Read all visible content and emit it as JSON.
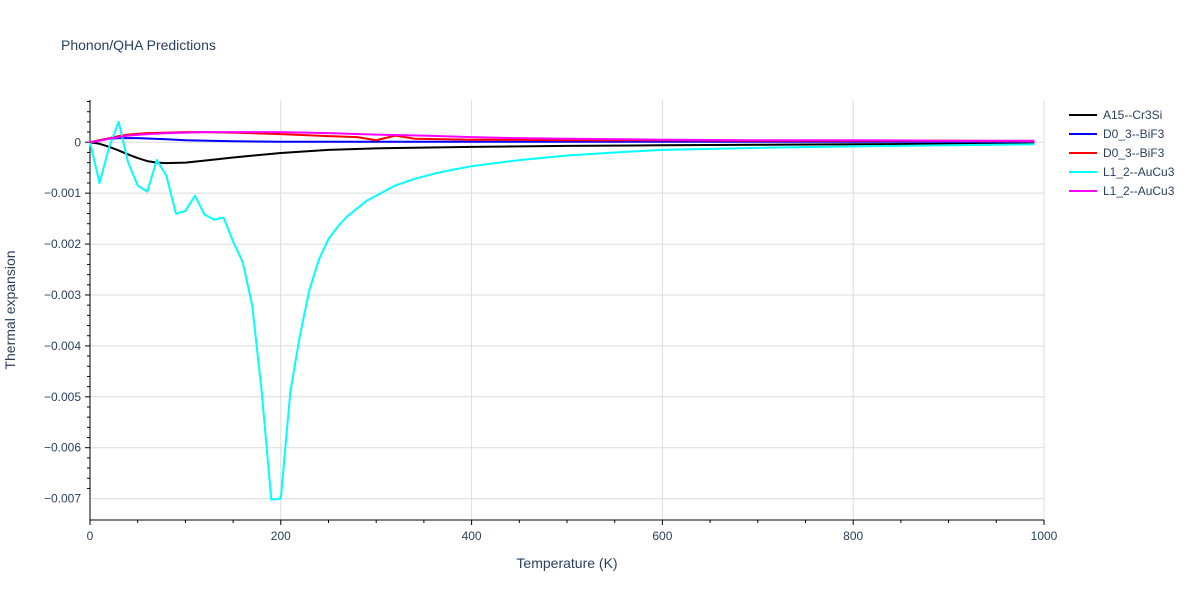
{
  "chart_data": {
    "type": "line",
    "title": "Phonon/QHA Predictions",
    "xlabel": "Temperature (K)",
    "ylabel": "Thermal expansion",
    "xlim": [
      0,
      1000
    ],
    "ylim": [
      -0.00742,
      0.00083
    ],
    "xticks": [
      0,
      200,
      400,
      600,
      800,
      1000
    ],
    "xtick_labels": [
      "0",
      "200",
      "400",
      "600",
      "800",
      "1000"
    ],
    "yticks": [
      0,
      -0.001,
      -0.002,
      -0.003,
      -0.004,
      -0.005,
      -0.006,
      -0.007
    ],
    "ytick_labels": [
      "0",
      "−0.001",
      "−0.002",
      "−0.003",
      "−0.004",
      "−0.005",
      "−0.006",
      "−0.007"
    ],
    "grid": true,
    "legend_position": "top-right",
    "series": [
      {
        "name": "A15--Cr3Si",
        "color": "#000000",
        "x": [
          0,
          10,
          20,
          30,
          40,
          50,
          60,
          70,
          80,
          100,
          120,
          150,
          200,
          250,
          300,
          400,
          500,
          600,
          700,
          800,
          900,
          990
        ],
        "y": [
          0,
          -3e-05,
          -9e-05,
          -0.00016,
          -0.00024,
          -0.00031,
          -0.00037,
          -0.0004,
          -0.00041,
          -0.0004,
          -0.00036,
          -0.0003,
          -0.00021,
          -0.00015,
          -0.00012,
          -9e-05,
          -7e-05,
          -6e-05,
          -5e-05,
          -4e-05,
          -3e-05,
          -3e-05
        ]
      },
      {
        "name": "D0_3--BiF3",
        "color": "#0000ff",
        "x": [
          0,
          10,
          20,
          30,
          50,
          80,
          100,
          150,
          200,
          300,
          400,
          500,
          600,
          800,
          990
        ],
        "y": [
          0,
          4e-05,
          7e-05,
          8e-05,
          8e-05,
          6e-05,
          4e-05,
          2e-05,
          1e-05,
          1e-05,
          1e-05,
          1e-05,
          1e-05,
          1e-05,
          1e-05
        ]
      },
      {
        "name": "D0_3--BiF3",
        "color": "#ff0000",
        "x": [
          0,
          10,
          20,
          30,
          40,
          60,
          80,
          100,
          120,
          150,
          200,
          250,
          280,
          300,
          320,
          340,
          400,
          450,
          500,
          600,
          700,
          800,
          900,
          990
        ],
        "y": [
          0,
          4e-05,
          8e-05,
          0.00012,
          0.00015,
          0.00018,
          0.00019,
          0.0002,
          0.0002,
          0.00019,
          0.00016,
          0.00012,
          0.0001,
          4e-05,
          0.00013,
          7e-05,
          5e-05,
          5e-05,
          4e-05,
          4e-05,
          3e-05,
          3e-05,
          3e-05,
          2e-05
        ]
      },
      {
        "name": "L1_2--AuCu3",
        "color": "#00ffff",
        "x": [
          0,
          10,
          20,
          30,
          40,
          50,
          60,
          70,
          80,
          90,
          100,
          110,
          120,
          130,
          140,
          150,
          160,
          170,
          180,
          190,
          200,
          210,
          220,
          230,
          240,
          250,
          260,
          270,
          280,
          290,
          300,
          310,
          320,
          340,
          360,
          380,
          400,
          450,
          500,
          550,
          600,
          700,
          800,
          900,
          990
        ],
        "y": [
          0,
          -0.0008,
          -0.0001,
          0.0004,
          -0.0004,
          -0.00085,
          -0.00097,
          -0.00035,
          -0.00065,
          -0.0014,
          -0.00135,
          -0.00105,
          -0.00142,
          -0.00152,
          -0.00148,
          -0.00195,
          -0.00235,
          -0.0032,
          -0.0049,
          -0.00702,
          -0.007,
          -0.0049,
          -0.0038,
          -0.0029,
          -0.0023,
          -0.0019,
          -0.00165,
          -0.00145,
          -0.0013,
          -0.00115,
          -0.00105,
          -0.00095,
          -0.00085,
          -0.00072,
          -0.00062,
          -0.00054,
          -0.00047,
          -0.00035,
          -0.00026,
          -0.0002,
          -0.00015,
          -0.00011,
          -8e-05,
          -6e-05,
          -4e-05
        ]
      },
      {
        "name": "L1_2--AuCu3",
        "color": "#ff00ff",
        "x": [
          0,
          10,
          20,
          30,
          40,
          60,
          80,
          100,
          120,
          150,
          200,
          250,
          300,
          350,
          400,
          450,
          500,
          600,
          700,
          800,
          900,
          990
        ],
        "y": [
          0,
          3e-05,
          7e-05,
          0.0001,
          0.00013,
          0.00016,
          0.00018,
          0.00019,
          0.0002,
          0.0002,
          0.0002,
          0.00018,
          0.00015,
          0.00013,
          0.0001,
          8e-05,
          7e-05,
          5e-05,
          4e-05,
          4e-05,
          3e-05,
          3e-05
        ]
      }
    ]
  }
}
